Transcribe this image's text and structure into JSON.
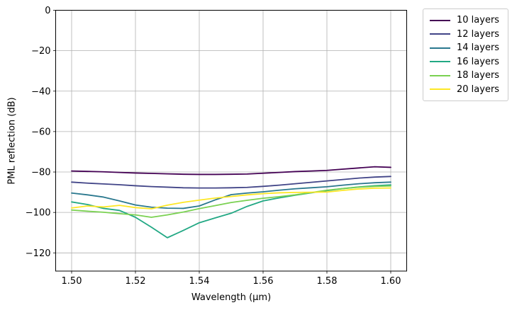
{
  "chart_data": {
    "type": "line",
    "title": "",
    "xlabel": "Wavelength (μm)",
    "ylabel": "PML reflection (dB)",
    "xlim": [
      1.495,
      1.605
    ],
    "ylim": [
      -129,
      0
    ],
    "xticks": [
      1.5,
      1.52,
      1.54,
      1.56,
      1.58,
      1.6
    ],
    "xtick_labels": [
      "1.50",
      "1.52",
      "1.54",
      "1.56",
      "1.58",
      "1.60"
    ],
    "yticks": [
      0,
      -20,
      -40,
      -60,
      -80,
      -100,
      -120
    ],
    "ytick_labels": [
      "0",
      "−20",
      "−40",
      "−60",
      "−80",
      "−100",
      "−120"
    ],
    "grid": true,
    "grid_color": "#b0b0b0",
    "spine_color": "#000000",
    "legend_position": "outside-top-right",
    "x": [
      1.5,
      1.505,
      1.51,
      1.515,
      1.52,
      1.525,
      1.53,
      1.535,
      1.54,
      1.545,
      1.55,
      1.555,
      1.56,
      1.565,
      1.57,
      1.575,
      1.58,
      1.585,
      1.59,
      1.595,
      1.6
    ],
    "series": [
      {
        "name": "10 layers",
        "color": "#440154",
        "values": [
          -79.5,
          -79.7,
          -79.9,
          -80.2,
          -80.5,
          -80.7,
          -80.9,
          -81.1,
          -81.2,
          -81.2,
          -81.1,
          -81.0,
          -80.6,
          -80.2,
          -79.8,
          -79.5,
          -79.2,
          -78.6,
          -78.0,
          -77.4,
          -77.7
        ]
      },
      {
        "name": "12 layers",
        "color": "#414487",
        "values": [
          -85.0,
          -85.5,
          -85.9,
          -86.3,
          -86.8,
          -87.2,
          -87.5,
          -87.8,
          -87.9,
          -87.9,
          -87.8,
          -87.6,
          -87.1,
          -86.5,
          -85.8,
          -85.1,
          -84.4,
          -83.7,
          -83.0,
          -82.5,
          -82.2
        ]
      },
      {
        "name": "14 layers",
        "color": "#2a788e",
        "values": [
          -90.4,
          -91.3,
          -92.4,
          -94.3,
          -96.3,
          -97.4,
          -97.9,
          -98.0,
          -96.8,
          -93.8,
          -91.2,
          -90.4,
          -89.8,
          -89.0,
          -88.3,
          -87.8,
          -87.3,
          -86.5,
          -85.8,
          -85.3,
          -85.0
        ]
      },
      {
        "name": "16 layers",
        "color": "#22a884",
        "values": [
          -94.8,
          -96.1,
          -98.0,
          -99.0,
          -102.4,
          -107.3,
          -112.5,
          -108.9,
          -105.1,
          -102.7,
          -100.4,
          -97.0,
          -94.3,
          -92.8,
          -91.5,
          -90.3,
          -89.2,
          -88.2,
          -87.4,
          -86.8,
          -86.4
        ]
      },
      {
        "name": "18 layers",
        "color": "#7ad151",
        "values": [
          -98.8,
          -99.4,
          -99.9,
          -100.6,
          -101.2,
          -102.4,
          -101.2,
          -99.8,
          -98.1,
          -96.6,
          -95.1,
          -94.0,
          -93.0,
          -92.2,
          -91.3,
          -90.2,
          -89.0,
          -88.2,
          -87.5,
          -87.1,
          -86.9
        ]
      },
      {
        "name": "20 layers",
        "color": "#fde725",
        "values": [
          -97.8,
          -96.8,
          -97.3,
          -96.5,
          -97.6,
          -98.2,
          -96.4,
          -95.0,
          -93.9,
          -92.9,
          -92.1,
          -91.3,
          -90.7,
          -90.3,
          -90.1,
          -90.0,
          -89.9,
          -89.1,
          -88.4,
          -88.0,
          -87.9
        ]
      }
    ]
  }
}
